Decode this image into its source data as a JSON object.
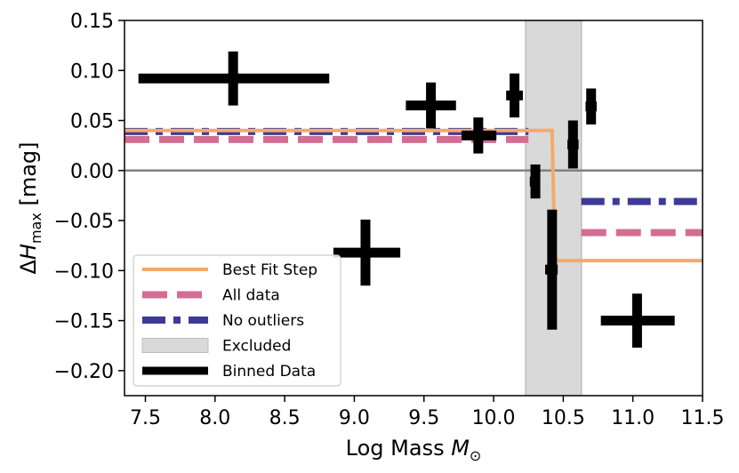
{
  "chart_data": {
    "type": "scatter",
    "xlabel": "Log Mass M",
    "xlabel_sub": "⊙",
    "ylabel_delta": "Δ",
    "ylabel_var": "H",
    "ylabel_sub": "max",
    "ylabel_unit": " [mag]",
    "xlim": [
      7.35,
      11.5
    ],
    "ylim": [
      -0.225,
      0.15
    ],
    "xticks": [
      7.5,
      8.0,
      8.5,
      9.0,
      9.5,
      10.0,
      10.5,
      11.0,
      11.5
    ],
    "xtick_labels": [
      "7.5",
      "8.0",
      "8.5",
      "9.0",
      "9.5",
      "10.0",
      "10.5",
      "11.0",
      "11.5"
    ],
    "yticks": [
      0.15,
      0.1,
      0.05,
      0.0,
      -0.05,
      -0.1,
      -0.15,
      -0.2
    ],
    "ytick_labels": [
      "0.15",
      "0.10",
      "0.05",
      "0.00",
      "−0.05",
      "−0.10",
      "−0.15",
      "−0.20"
    ],
    "zero_line": 0.0,
    "excluded_region": {
      "label": "Excluded",
      "x0": 10.23,
      "x1": 10.63,
      "color": "#d9d9d9"
    },
    "best_fit_step": {
      "label": "Best Fit Step",
      "color": "#f5a96a",
      "points": [
        [
          7.35,
          0.04
        ],
        [
          10.42,
          0.04
        ],
        [
          10.44,
          -0.09
        ],
        [
          11.5,
          -0.09
        ]
      ]
    },
    "all_data": {
      "label": "All data",
      "color": "#d36d93",
      "segments": [
        {
          "x": [
            7.35,
            10.25
          ],
          "y": 0.031
        },
        {
          "x": [
            10.63,
            11.5
          ],
          "y": -0.062
        }
      ]
    },
    "no_outliers": {
      "label": "No outliers",
      "color": "#3e3a98",
      "segments": [
        {
          "x": [
            7.35,
            10.25
          ],
          "y": 0.039
        },
        {
          "x": [
            10.63,
            11.5
          ],
          "y": -0.031
        }
      ]
    },
    "binned_data": {
      "label": "Binned Data",
      "color": "#000000",
      "points": [
        {
          "x": 8.13,
          "y": 0.092,
          "xlo": 7.45,
          "xhi": 8.82,
          "yerr": 0.027
        },
        {
          "x": 9.08,
          "y": -0.082,
          "xlo": 8.85,
          "xhi": 9.33,
          "yerr": 0.033
        },
        {
          "x": 9.55,
          "y": 0.065,
          "xlo": 9.37,
          "xhi": 9.73,
          "yerr": 0.023
        },
        {
          "x": 9.89,
          "y": 0.035,
          "xlo": 9.77,
          "xhi": 10.02,
          "yerr": 0.018
        },
        {
          "x": 10.15,
          "y": 0.075,
          "xlo": 10.09,
          "xhi": 10.21,
          "yerr": 0.022
        },
        {
          "x": 10.3,
          "y": -0.011,
          "xlo": 10.26,
          "xhi": 10.33,
          "yerr": 0.017
        },
        {
          "x": 10.42,
          "y": -0.099,
          "xlo": 10.37,
          "xhi": 10.46,
          "yerr": 0.06
        },
        {
          "x": 10.57,
          "y": 0.026,
          "xlo": 10.53,
          "xhi": 10.61,
          "yerr": 0.024
        },
        {
          "x": 10.7,
          "y": 0.064,
          "xlo": 10.66,
          "xhi": 10.74,
          "yerr": 0.018
        },
        {
          "x": 11.03,
          "y": -0.15,
          "xlo": 10.77,
          "xhi": 11.3,
          "yerr": 0.027
        }
      ]
    },
    "legend": [
      {
        "label": "Best Fit Step",
        "style": "solid",
        "color": "#f5a96a"
      },
      {
        "label": "All data",
        "style": "dashed",
        "color": "#d36d93"
      },
      {
        "label": "No outliers",
        "style": "dashdot",
        "color": "#3e3a98"
      },
      {
        "label": "Excluded",
        "style": "patch",
        "color": "#d9d9d9"
      },
      {
        "label": "Binned Data",
        "style": "solid",
        "color": "#000000"
      }
    ],
    "legend_position": "lower-left"
  }
}
